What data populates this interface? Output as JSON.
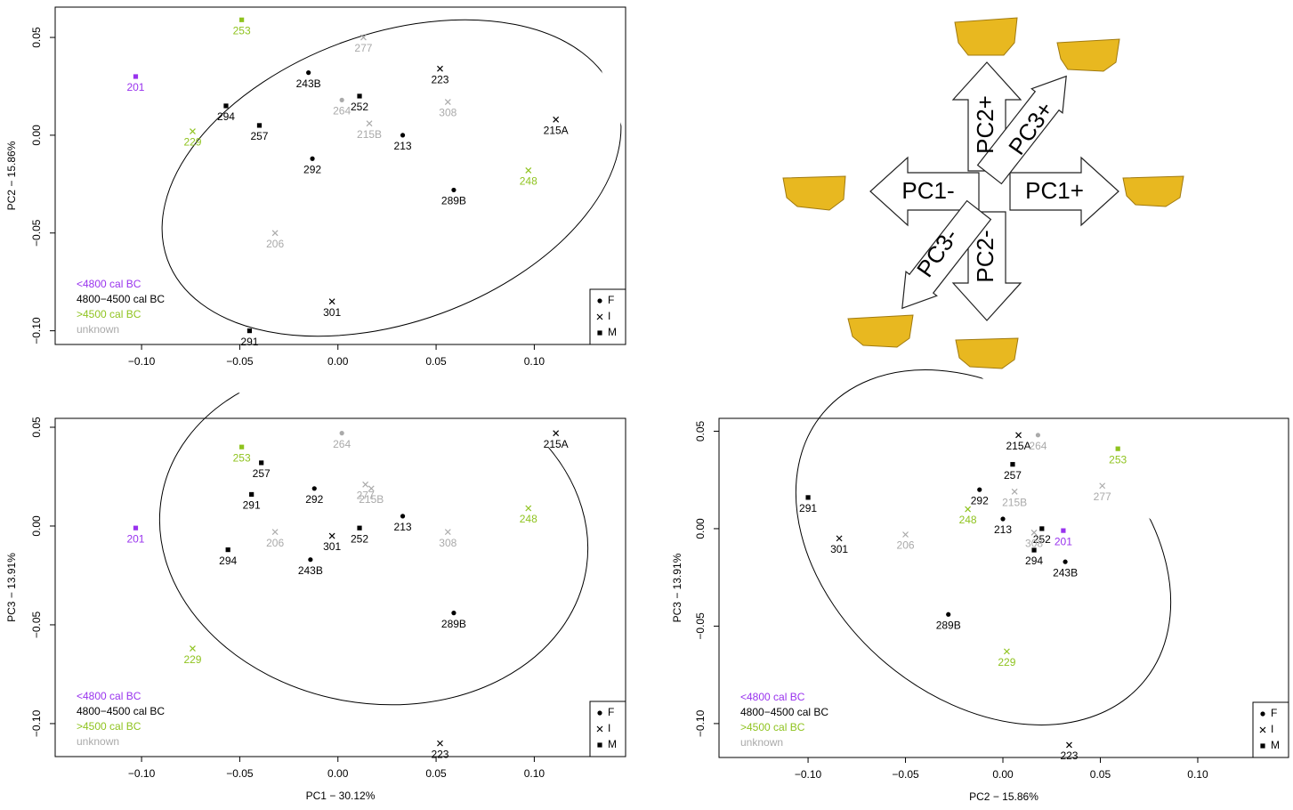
{
  "chart_data": [
    {
      "type": "scatter",
      "ylabel": "PC2 − 15.86%",
      "xlim": [
        -0.144,
        0.1465
      ],
      "ylim": [
        -0.107,
        0.0655
      ],
      "xticks": [
        {
          "value": -0.1,
          "label": "−0.10"
        },
        {
          "value": -0.05,
          "label": "−0.05"
        },
        {
          "value": 0,
          "label": "0.00"
        },
        {
          "value": 0.05,
          "label": "0.05"
        },
        {
          "value": 0.1,
          "label": "0.10"
        }
      ],
      "yticks": [
        {
          "value": -0.1,
          "label": "−0.10"
        },
        {
          "value": -0.05,
          "label": "−0.05"
        },
        {
          "value": 0,
          "label": "0.00"
        },
        {
          "value": 0.05,
          "label": "0.05"
        }
      ],
      "legend_loc": "lower left",
      "shape_legend": [
        {
          "label": "F",
          "shape": "dot"
        },
        {
          "label": "I",
          "shape": "cross"
        },
        {
          "label": "M",
          "shape": "square"
        }
      ],
      "series": [
        {
          "name": "<4800 cal BC",
          "color": "#9933ee",
          "labels": [
            "201"
          ],
          "sex": [
            "M"
          ],
          "x": [
            -0.103
          ],
          "y": [
            0.03
          ]
        },
        {
          "name": "4800−4500 cal BC",
          "color": "#000000",
          "labels": [
            "243B",
            "294",
            "257",
            "252",
            "223",
            "215A",
            "213",
            "292",
            "289B",
            "301",
            "291"
          ],
          "sex": [
            "F",
            "M",
            "M",
            "M",
            "I",
            "I",
            "F",
            "F",
            "F",
            "I",
            "M"
          ],
          "x": [
            -0.015,
            -0.057,
            -0.04,
            0.011,
            0.052,
            0.111,
            0.033,
            -0.013,
            0.059,
            -0.003,
            -0.045
          ],
          "y": [
            0.032,
            0.015,
            0.005,
            0.02,
            0.034,
            0.008,
            0.0,
            -0.012,
            -0.028,
            -0.085,
            -0.1
          ]
        },
        {
          "name": ">4500 cal BC",
          "color": "#8fc31f",
          "labels": [
            "253",
            "229",
            "248"
          ],
          "sex": [
            "M",
            "I",
            "I"
          ],
          "x": [
            -0.049,
            -0.074,
            0.097
          ],
          "y": [
            0.059,
            0.002,
            -0.018
          ]
        },
        {
          "name": "unknown",
          "color": "#aaaaaa",
          "labels": [
            "277",
            "264",
            "308",
            "215B",
            "206"
          ],
          "sex": [
            "I",
            "F",
            "I",
            "I",
            "I"
          ],
          "x": [
            0.013,
            0.002,
            0.056,
            0.016,
            -0.032
          ],
          "y": [
            0.05,
            0.018,
            0.017,
            0.006,
            -0.05
          ]
        }
      ]
    },
    {
      "type": "scatter",
      "xlabel": "PC1 − 30.12%",
      "ylabel": "PC3 − 13.91%",
      "xlim": [
        -0.144,
        0.1465
      ],
      "ylim": [
        -0.1167,
        0.0545
      ],
      "xticks": [
        {
          "value": -0.1,
          "label": "−0.10"
        },
        {
          "value": -0.05,
          "label": "−0.05"
        },
        {
          "value": 0,
          "label": "0.00"
        },
        {
          "value": 0.05,
          "label": "0.05"
        },
        {
          "value": 0.1,
          "label": "0.10"
        }
      ],
      "yticks": [
        {
          "value": -0.1,
          "label": "−0.10"
        },
        {
          "value": -0.05,
          "label": "−0.05"
        },
        {
          "value": 0,
          "label": "0.00"
        },
        {
          "value": 0.05,
          "label": "0.05"
        }
      ],
      "legend_loc": "lower left",
      "shape_legend": [
        {
          "label": "F",
          "shape": "dot"
        },
        {
          "label": "I",
          "shape": "cross"
        },
        {
          "label": "M",
          "shape": "square"
        }
      ],
      "series": [
        {
          "name": "<4800 cal BC",
          "color": "#9933ee",
          "labels": [
            "201"
          ],
          "sex": [
            "M"
          ],
          "x": [
            -0.103
          ],
          "y": [
            -0.001
          ]
        },
        {
          "name": "4800−4500 cal BC",
          "color": "#000000",
          "labels": [
            "257",
            "291",
            "292",
            "294",
            "301",
            "252",
            "213",
            "243B",
            "215A",
            "289B",
            "223"
          ],
          "sex": [
            "M",
            "M",
            "F",
            "M",
            "I",
            "M",
            "F",
            "F",
            "I",
            "F",
            "I"
          ],
          "x": [
            -0.039,
            -0.044,
            -0.012,
            -0.056,
            -0.003,
            0.011,
            0.033,
            -0.014,
            0.111,
            0.059,
            0.052
          ],
          "y": [
            0.032,
            0.016,
            0.019,
            -0.012,
            -0.005,
            -0.001,
            0.005,
            -0.017,
            0.047,
            -0.044,
            -0.11
          ]
        },
        {
          "name": ">4500 cal BC",
          "color": "#8fc31f",
          "labels": [
            "253",
            "229",
            "248"
          ],
          "sex": [
            "M",
            "I",
            "I"
          ],
          "x": [
            -0.049,
            -0.074,
            0.097
          ],
          "y": [
            0.04,
            -0.062,
            0.009
          ]
        },
        {
          "name": "unknown",
          "color": "#aaaaaa",
          "labels": [
            "264",
            "277",
            "215B",
            "206",
            "308"
          ],
          "sex": [
            "F",
            "I",
            "I",
            "I",
            "I"
          ],
          "x": [
            0.002,
            0.014,
            0.017,
            -0.032,
            0.056
          ],
          "y": [
            0.047,
            0.021,
            0.019,
            -0.003,
            -0.003
          ]
        }
      ]
    },
    {
      "type": "scatter",
      "xlabel": "PC2 − 15.86%",
      "ylabel": "PC3 − 13.91%",
      "xlim": [
        -0.1457,
        0.1466
      ],
      "ylim": [
        -0.1174,
        0.0566
      ],
      "xticks": [
        {
          "value": -0.1,
          "label": "−0.10"
        },
        {
          "value": -0.05,
          "label": "−0.05"
        },
        {
          "value": 0,
          "label": "0.00"
        },
        {
          "value": 0.05,
          "label": "0.05"
        },
        {
          "value": 0.1,
          "label": "0.10"
        }
      ],
      "yticks": [
        {
          "value": -0.1,
          "label": "−0.10"
        },
        {
          "value": -0.05,
          "label": "−0.05"
        },
        {
          "value": 0,
          "label": "0.00"
        },
        {
          "value": 0.05,
          "label": "0.05"
        }
      ],
      "legend_loc": "lower left",
      "shape_legend": [
        {
          "label": "F",
          "shape": "dot"
        },
        {
          "label": "I",
          "shape": "cross"
        },
        {
          "label": "M",
          "shape": "square"
        }
      ],
      "series": [
        {
          "name": "<4800 cal BC",
          "color": "#9933ee",
          "labels": [
            "201"
          ],
          "sex": [
            "M"
          ],
          "x": [
            0.031
          ],
          "y": [
            -0.001
          ]
        },
        {
          "name": "4800−4500 cal BC",
          "color": "#000000",
          "labels": [
            "215A",
            "257",
            "291",
            "292",
            "213",
            "252",
            "294",
            "243B",
            "301",
            "289B",
            "223"
          ],
          "sex": [
            "I",
            "M",
            "M",
            "F",
            "F",
            "M",
            "M",
            "F",
            "I",
            "F",
            "I"
          ],
          "x": [
            0.008,
            0.005,
            -0.1,
            -0.012,
            0.0,
            0.02,
            0.016,
            0.032,
            -0.084,
            -0.028,
            0.034
          ],
          "y": [
            0.048,
            0.033,
            0.016,
            0.02,
            0.005,
            0.0,
            -0.011,
            -0.017,
            -0.005,
            -0.044,
            -0.111
          ]
        },
        {
          "name": ">4500 cal BC",
          "color": "#8fc31f",
          "labels": [
            "253",
            "248",
            "229"
          ],
          "sex": [
            "M",
            "I",
            "I"
          ],
          "x": [
            0.059,
            -0.018,
            0.002
          ],
          "y": [
            0.041,
            0.01,
            -0.063
          ]
        },
        {
          "name": "unknown",
          "color": "#aaaaaa",
          "labels": [
            "264",
            "277",
            "215B",
            "206",
            "308"
          ],
          "sex": [
            "F",
            "I",
            "I",
            "I",
            "I"
          ],
          "x": [
            0.018,
            0.051,
            0.006,
            -0.05,
            0.016
          ],
          "y": [
            0.048,
            0.022,
            0.019,
            -0.003,
            -0.002
          ]
        }
      ]
    }
  ],
  "diagram": {
    "arrows": [
      "PC2+",
      "PC3+",
      "PC1-",
      "PC1+",
      "PC3-",
      "PC2-"
    ]
  }
}
